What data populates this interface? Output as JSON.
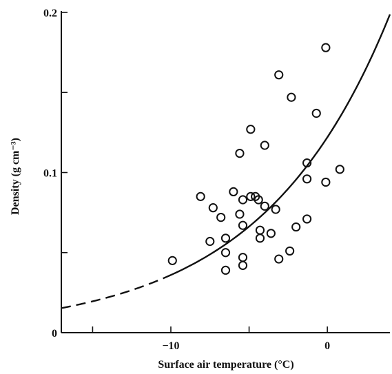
{
  "chart_data": {
    "type": "scatter",
    "title": "",
    "xlabel": "Surface air temperature (°C)",
    "ylabel": "Density (g cm⁻³)",
    "xlim": [
      -17,
      4
    ],
    "ylim": [
      0,
      0.2
    ],
    "xticks": [
      -15,
      -10,
      -5,
      0
    ],
    "xtick_labels": [
      "",
      "−10",
      "",
      "0"
    ],
    "yticks": [
      0,
      0.05,
      0.1,
      0.15,
      0.2
    ],
    "ytick_labels": [
      "0",
      "",
      "0.1",
      "",
      "0.2"
    ],
    "grid": false,
    "legend": "none",
    "points": [
      {
        "x": -9.9,
        "y": 0.045
      },
      {
        "x": -8.1,
        "y": 0.085
      },
      {
        "x": -7.5,
        "y": 0.057
      },
      {
        "x": -7.3,
        "y": 0.078
      },
      {
        "x": -6.8,
        "y": 0.072
      },
      {
        "x": -6.5,
        "y": 0.059
      },
      {
        "x": -6.5,
        "y": 0.05
      },
      {
        "x": -6.5,
        "y": 0.039
      },
      {
        "x": -6.0,
        "y": 0.088
      },
      {
        "x": -5.6,
        "y": 0.112
      },
      {
        "x": -5.6,
        "y": 0.074
      },
      {
        "x": -5.4,
        "y": 0.083
      },
      {
        "x": -5.4,
        "y": 0.067
      },
      {
        "x": -5.4,
        "y": 0.047
      },
      {
        "x": -5.4,
        "y": 0.042
      },
      {
        "x": -4.9,
        "y": 0.127
      },
      {
        "x": -4.9,
        "y": 0.085
      },
      {
        "x": -4.6,
        "y": 0.085
      },
      {
        "x": -4.4,
        "y": 0.083
      },
      {
        "x": -4.3,
        "y": 0.064
      },
      {
        "x": -4.3,
        "y": 0.059
      },
      {
        "x": -4.0,
        "y": 0.117
      },
      {
        "x": -4.0,
        "y": 0.079
      },
      {
        "x": -3.6,
        "y": 0.062
      },
      {
        "x": -3.3,
        "y": 0.077
      },
      {
        "x": -3.1,
        "y": 0.161
      },
      {
        "x": -3.1,
        "y": 0.046
      },
      {
        "x": -2.3,
        "y": 0.147
      },
      {
        "x": -2.4,
        "y": 0.051
      },
      {
        "x": -2.0,
        "y": 0.066
      },
      {
        "x": -1.3,
        "y": 0.106
      },
      {
        "x": -1.3,
        "y": 0.096
      },
      {
        "x": -1.3,
        "y": 0.071
      },
      {
        "x": -0.7,
        "y": 0.137
      },
      {
        "x": -0.1,
        "y": 0.178
      },
      {
        "x": -0.1,
        "y": 0.094
      },
      {
        "x": 0.8,
        "y": 0.102
      }
    ],
    "fit_curve": {
      "model": "exponential",
      "a": 0.122,
      "b": 0.122,
      "solid_from_x": -10.5,
      "dashed_to_x": -10.5
    }
  }
}
